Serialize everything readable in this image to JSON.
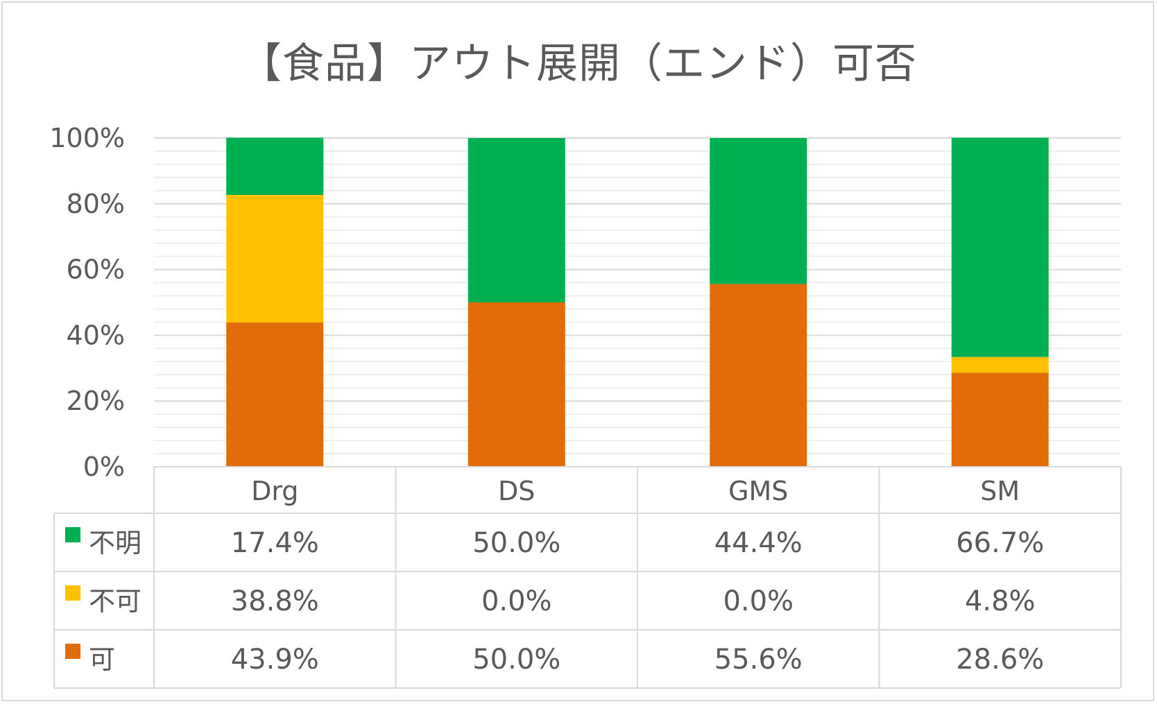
{
  "chart_data": {
    "type": "bar",
    "stacked": true,
    "percent": true,
    "title": "【食品】アウト展開（エンド）可否",
    "categories": [
      "Drg",
      "DS",
      "GMS",
      "SM"
    ],
    "ylim": [
      0,
      100
    ],
    "yticks": [
      "0%",
      "20%",
      "40%",
      "60%",
      "80%",
      "100%"
    ],
    "grid": true,
    "legend_placement": "data-table-left",
    "series": [
      {
        "name": "可",
        "color": "#e36c0a",
        "values": [
          43.9,
          50.0,
          55.6,
          28.6
        ],
        "labels": [
          "43.9%",
          "50.0%",
          "55.6%",
          "28.6%"
        ]
      },
      {
        "name": "不可",
        "color": "#ffc000",
        "values": [
          38.8,
          0.0,
          0.0,
          4.8
        ],
        "labels": [
          "38.8%",
          "0.0%",
          "0.0%",
          "4.8%"
        ]
      },
      {
        "name": "不明",
        "color": "#00b050",
        "values": [
          17.4,
          50.0,
          44.4,
          66.7
        ],
        "labels": [
          "17.4%",
          "50.0%",
          "44.4%",
          "66.7%"
        ]
      }
    ],
    "table_row_order": [
      "不明",
      "不可",
      "可"
    ]
  }
}
